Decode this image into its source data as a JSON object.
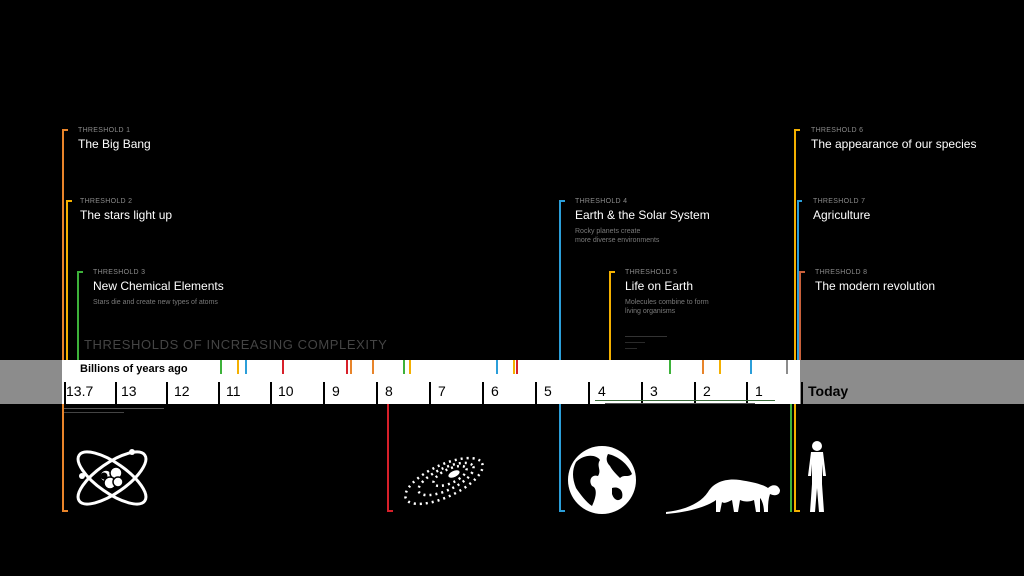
{
  "colors": {
    "orange": "#e8842a",
    "gold": "#f4b000",
    "green": "#3db23a",
    "blue": "#2b9ed9",
    "red": "#d7202a",
    "band_gray": "#8c8c8c",
    "band_white": "#ffffff"
  },
  "scale": {
    "title": "THRESHOLDS OF INCREASING COMPLEXITY",
    "axis_label": "Billions of years ago",
    "ticks": [
      "13.7",
      "13",
      "12",
      "11",
      "10",
      "9",
      "8",
      "7",
      "6",
      "5",
      "4",
      "3",
      "2",
      "1"
    ],
    "end_label": "Today"
  },
  "thresholds": [
    {
      "label": "THRESHOLD 1",
      "title": "The Big Bang",
      "desc": []
    },
    {
      "label": "THRESHOLD 2",
      "title": "The stars light up",
      "desc": []
    },
    {
      "label": "THRESHOLD 3",
      "title": "New Chemical Elements",
      "desc": [
        "Stars die and create new types of atoms"
      ]
    },
    {
      "label": "THRESHOLD 4",
      "title": "Earth & the Solar System",
      "desc": [
        "Rocky planets create",
        "more diverse environments"
      ]
    },
    {
      "label": "THRESHOLD 5",
      "title": "Life on Earth",
      "desc": [
        "Molecules combine to form",
        "living organisms"
      ]
    },
    {
      "label": "THRESHOLD 6",
      "title": "The appearance of our species",
      "desc": []
    },
    {
      "label": "THRESHOLD 7",
      "title": "Agriculture",
      "desc": []
    },
    {
      "label": "THRESHOLD 8",
      "title": "The modern revolution",
      "desc": []
    }
  ],
  "icons": [
    "atom-icon",
    "galaxy-icon",
    "globe-icon",
    "dinosaur-icon",
    "human-icon"
  ]
}
